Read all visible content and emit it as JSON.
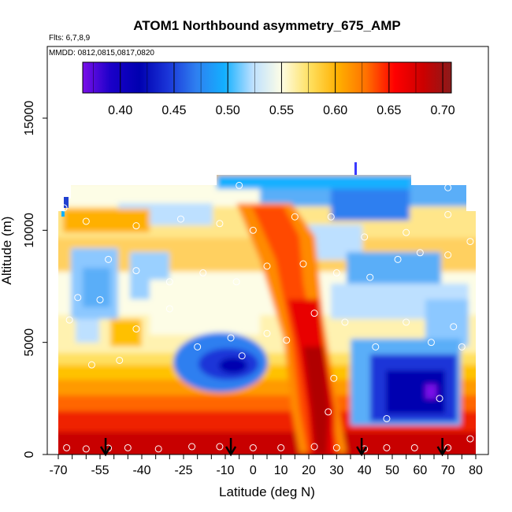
{
  "chart_data": {
    "type": "heatmap",
    "title": "ATOM1 Northbound asymmetry_675_AMP",
    "flights_note": "Flts: 6,7,8,9",
    "dates_note": "MMDD: 0812,0815,0817,0820",
    "xlabel": "Latitude (deg N)",
    "ylabel": "Altitude (m)",
    "xlim": [
      -70,
      83
    ],
    "ylim": [
      0,
      17500
    ],
    "x_ticks": [
      "-70",
      "-55",
      "-40",
      "-25",
      "-10",
      "0",
      "10",
      "20",
      "30",
      "40",
      "50",
      "60",
      "70",
      "80"
    ],
    "x_tick_values": [
      -70,
      -55,
      -40,
      -25,
      -10,
      0,
      10,
      20,
      30,
      40,
      50,
      60,
      70,
      80
    ],
    "y_ticks": [
      "0",
      "5000",
      "10000",
      "15000"
    ],
    "y_tick_values": [
      0,
      5000,
      10000,
      15000
    ],
    "colorbar": {
      "range": [
        0.365,
        0.708
      ],
      "ticks": [
        "0.40",
        "0.45",
        "0.50",
        "0.55",
        "0.60",
        "0.65",
        "0.70"
      ],
      "tick_values": [
        0.4,
        0.45,
        0.5,
        0.55,
        0.6,
        0.65,
        0.7
      ],
      "color_stops": [
        "#7a10e8",
        "#1a00c8",
        "#0000b0",
        "#1a35d8",
        "#2e7ff0",
        "#13b0ff",
        "#bde0ff",
        "#fdfde6",
        "#ffe060",
        "#ffb000",
        "#ff7000",
        "#ff0000",
        "#cc0000",
        "#8b1a1a"
      ]
    },
    "profile_arrows_latitude": [
      -53,
      -8,
      39,
      68
    ],
    "observation_points": [
      {
        "x": -67,
        "y": 300
      },
      {
        "x": -60,
        "y": 250
      },
      {
        "x": -52,
        "y": 280
      },
      {
        "x": -45,
        "y": 300
      },
      {
        "x": -34,
        "y": 250
      },
      {
        "x": -22,
        "y": 350
      },
      {
        "x": -12,
        "y": 350
      },
      {
        "x": 0,
        "y": 300
      },
      {
        "x": 10,
        "y": 300
      },
      {
        "x": 22,
        "y": 350
      },
      {
        "x": 30,
        "y": 300
      },
      {
        "x": 40,
        "y": 250
      },
      {
        "x": 48,
        "y": 300
      },
      {
        "x": 58,
        "y": 300
      },
      {
        "x": 70,
        "y": 300
      },
      {
        "x": 78,
        "y": 700
      },
      {
        "x": -58,
        "y": 4000
      },
      {
        "x": -48,
        "y": 4200
      },
      {
        "x": -4,
        "y": 4400
      },
      {
        "x": 29,
        "y": 3400
      },
      {
        "x": 27,
        "y": 1900
      },
      {
        "x": 48,
        "y": 1600
      },
      {
        "x": 67,
        "y": 2500
      },
      {
        "x": 75,
        "y": 4800
      },
      {
        "x": -66,
        "y": 6000
      },
      {
        "x": -55,
        "y": 6900
      },
      {
        "x": -42,
        "y": 5600
      },
      {
        "x": -30,
        "y": 6500
      },
      {
        "x": -20,
        "y": 4800
      },
      {
        "x": -8,
        "y": 5200
      },
      {
        "x": 5,
        "y": 5400
      },
      {
        "x": 12,
        "y": 5100
      },
      {
        "x": 22,
        "y": 6300
      },
      {
        "x": 33,
        "y": 5900
      },
      {
        "x": 44,
        "y": 4800
      },
      {
        "x": 55,
        "y": 5900
      },
      {
        "x": 64,
        "y": 5000
      },
      {
        "x": 72,
        "y": 5700
      },
      {
        "x": -63,
        "y": 7000
      },
      {
        "x": -52,
        "y": 8700
      },
      {
        "x": -42,
        "y": 8200
      },
      {
        "x": -30,
        "y": 7700
      },
      {
        "x": -18,
        "y": 8100
      },
      {
        "x": -6,
        "y": 7700
      },
      {
        "x": 5,
        "y": 8400
      },
      {
        "x": 18,
        "y": 8500
      },
      {
        "x": 30,
        "y": 8100
      },
      {
        "x": 42,
        "y": 7900
      },
      {
        "x": 52,
        "y": 8700
      },
      {
        "x": 60,
        "y": 9000
      },
      {
        "x": 70,
        "y": 8900
      },
      {
        "x": 78,
        "y": 9500
      },
      {
        "x": -60,
        "y": 10400
      },
      {
        "x": -42,
        "y": 10200
      },
      {
        "x": -26,
        "y": 10500
      },
      {
        "x": -12,
        "y": 10300
      },
      {
        "x": 0,
        "y": 10000
      },
      {
        "x": 15,
        "y": 10600
      },
      {
        "x": 28,
        "y": 10600
      },
      {
        "x": 40,
        "y": 9700
      },
      {
        "x": 55,
        "y": 9900
      },
      {
        "x": 70,
        "y": 10700
      },
      {
        "x": -68,
        "y": 11000
      },
      {
        "x": -5,
        "y": 12000
      },
      {
        "x": 70,
        "y": 11900
      }
    ]
  }
}
